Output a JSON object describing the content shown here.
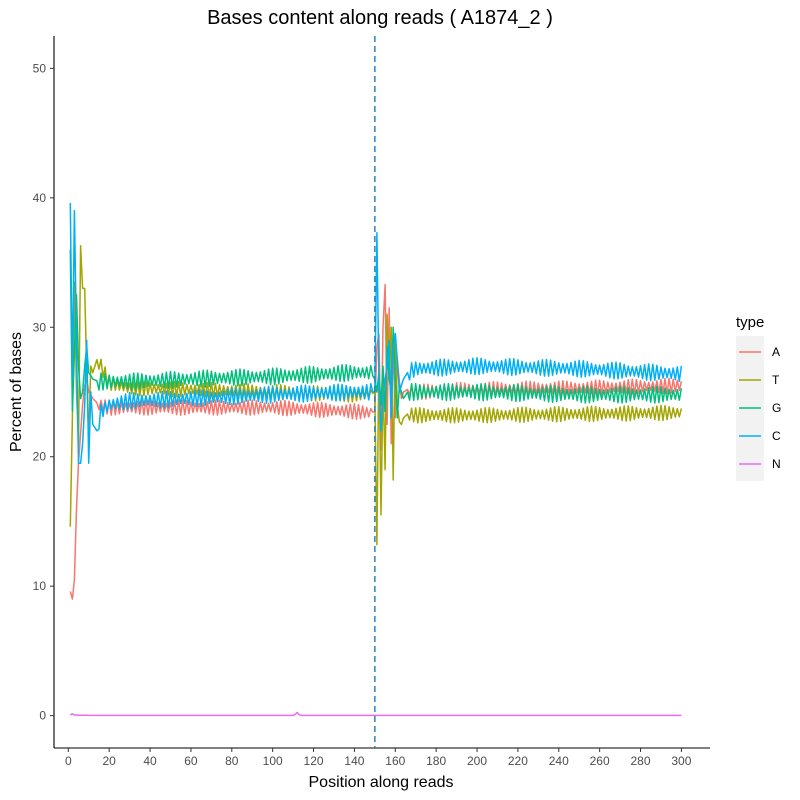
{
  "chart_data": {
    "type": "line",
    "title": "Bases content along reads ( A1874_2 )",
    "xlabel": "Position along reads",
    "ylabel": "Percent of bases",
    "xlim": [
      -7,
      314
    ],
    "ylim": [
      -2.5,
      52.5
    ],
    "x_ticks": [
      0,
      20,
      40,
      60,
      80,
      100,
      120,
      140,
      160,
      180,
      200,
      220,
      240,
      260,
      280,
      300
    ],
    "y_ticks": [
      0,
      10,
      20,
      30,
      40,
      50
    ],
    "grid": false,
    "legend": {
      "title": "type",
      "position": "right"
    },
    "vline": {
      "x": 150,
      "style": "dashed",
      "color": "#2b83ba"
    },
    "series": [
      {
        "name": "A",
        "color": "#F8766D",
        "x": [
          1,
          2,
          3,
          4,
          5,
          6,
          7,
          8,
          9,
          10,
          12,
          15,
          20,
          30,
          60,
          100,
          140,
          148,
          150,
          151,
          152,
          153,
          154,
          155,
          156,
          157,
          158,
          159,
          160,
          161,
          162,
          163,
          164,
          166,
          170,
          200,
          250,
          300
        ],
        "y": [
          9.6,
          9.0,
          10.5,
          16.0,
          19.5,
          21.8,
          24.0,
          25.5,
          26.0,
          25.0,
          24.5,
          24.0,
          23.8,
          23.8,
          23.8,
          23.8,
          23.5,
          23.4,
          23.5,
          28.5,
          29.5,
          20.5,
          30.0,
          33.3,
          22.5,
          31.5,
          21.0,
          29.0,
          23.0,
          27.5,
          25.8,
          24.5,
          25.0,
          25.2,
          25.0,
          25.2,
          25.3,
          25.5
        ],
        "amp": 0.45
      },
      {
        "name": "T",
        "color": "#A3A500",
        "x": [
          1,
          2,
          3,
          4,
          5,
          6,
          7,
          8,
          9,
          10,
          11,
          12,
          14,
          16,
          20,
          30,
          60,
          100,
          140,
          148,
          150,
          151,
          152,
          153,
          154,
          155,
          156,
          157,
          158,
          159,
          160,
          161,
          162,
          163,
          164,
          166,
          170,
          200,
          250,
          300
        ],
        "y": [
          14.6,
          23.0,
          33.5,
          25.0,
          21.0,
          36.3,
          33.0,
          33.0,
          26.5,
          21.5,
          27.0,
          26.5,
          27.5,
          27.0,
          25.7,
          25.3,
          25.2,
          25.0,
          24.8,
          24.8,
          25.0,
          13.2,
          28.0,
          15.5,
          26.0,
          19.0,
          31.0,
          26.0,
          30.0,
          18.2,
          29.5,
          24.0,
          22.7,
          22.5,
          23.0,
          23.3,
          23.2,
          23.2,
          23.3,
          23.4
        ],
        "amp": 0.45
      },
      {
        "name": "G",
        "color": "#00BF7D",
        "x": [
          1,
          2,
          3,
          4,
          5,
          6,
          7,
          8,
          9,
          10,
          12,
          15,
          20,
          30,
          60,
          100,
          140,
          148,
          150,
          151,
          152,
          153,
          154,
          155,
          156,
          157,
          158,
          159,
          160,
          161,
          162,
          164,
          166,
          170,
          200,
          250,
          300
        ],
        "y": [
          36.0,
          23.5,
          28.0,
          32.5,
          27.0,
          24.5,
          25.0,
          27.0,
          28.5,
          26.5,
          26.0,
          25.8,
          25.8,
          25.8,
          26.0,
          26.2,
          26.5,
          26.5,
          26.0,
          25.0,
          26.5,
          24.0,
          27.0,
          23.5,
          28.5,
          26.0,
          25.0,
          30.0,
          26.0,
          23.0,
          25.5,
          24.5,
          25.0,
          25.0,
          25.0,
          24.8,
          24.8
        ],
        "amp": 0.5
      },
      {
        "name": "C",
        "color": "#00B0F6",
        "x": [
          1,
          2,
          3,
          4,
          5,
          6,
          7,
          8,
          9,
          10,
          11,
          12,
          14,
          16,
          20,
          30,
          60,
          100,
          140,
          148,
          150,
          151,
          152,
          153,
          154,
          155,
          156,
          157,
          158,
          159,
          160,
          161,
          162,
          163,
          164,
          166,
          170,
          200,
          250,
          300
        ],
        "y": [
          39.6,
          26.0,
          39.0,
          29.0,
          19.5,
          19.5,
          21.0,
          24.0,
          29.0,
          19.5,
          25.0,
          22.5,
          22.0,
          23.5,
          24.0,
          24.3,
          24.5,
          24.8,
          25.0,
          25.0,
          25.0,
          37.3,
          26.0,
          22.0,
          24.5,
          26.0,
          27.0,
          29.0,
          23.0,
          28.5,
          29.5,
          27.5,
          25.0,
          25.5,
          26.0,
          26.5,
          26.8,
          27.0,
          26.8,
          26.4
        ],
        "amp": 0.5
      },
      {
        "name": "N",
        "color": "#E76BF3",
        "x": [
          1,
          2,
          3,
          10,
          20,
          110,
          111,
          112,
          113,
          114,
          120,
          200,
          300
        ],
        "y": [
          0.05,
          0.15,
          0.05,
          0.02,
          0.02,
          0.02,
          0.08,
          0.25,
          0.08,
          0.02,
          0.02,
          0.02,
          0.02
        ],
        "amp": 0.0
      }
    ]
  }
}
